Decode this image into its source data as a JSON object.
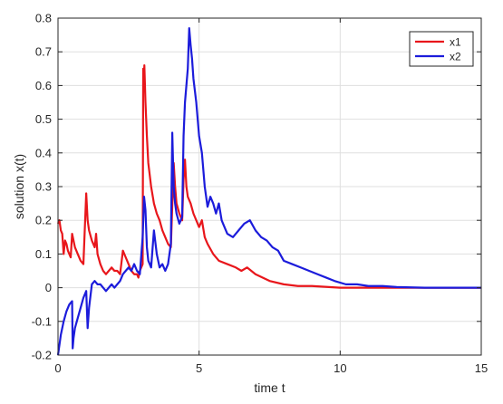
{
  "chart_data": {
    "type": "line",
    "title": "",
    "xlabel": "time t",
    "ylabel": "solution x(t)",
    "xlim": [
      0,
      15
    ],
    "ylim": [
      -0.2,
      0.8
    ],
    "x_ticks": [
      0,
      5,
      10,
      15
    ],
    "y_ticks": [
      -0.2,
      -0.1,
      0,
      0.1,
      0.2,
      0.3,
      0.4,
      0.5,
      0.6,
      0.7,
      0.8
    ],
    "x_tick_labels": [
      "0",
      "5",
      "10",
      "15"
    ],
    "y_tick_labels": [
      "-0.2",
      "-0.1",
      "0",
      "0.1",
      "0.2",
      "0.3",
      "0.4",
      "0.5",
      "0.6",
      "0.7",
      "0.8"
    ],
    "grid": true,
    "legend_position": "top-right",
    "series": [
      {
        "name": "x1",
        "color": "#e8161b",
        "points": [
          [
            0,
            0.19
          ],
          [
            0.05,
            0.2
          ],
          [
            0.1,
            0.17
          ],
          [
            0.15,
            0.16
          ],
          [
            0.2,
            0.1
          ],
          [
            0.25,
            0.14
          ],
          [
            0.3,
            0.13
          ],
          [
            0.35,
            0.11
          ],
          [
            0.4,
            0.1
          ],
          [
            0.45,
            0.09
          ],
          [
            0.5,
            0.16
          ],
          [
            0.55,
            0.14
          ],
          [
            0.6,
            0.12
          ],
          [
            0.7,
            0.1
          ],
          [
            0.8,
            0.08
          ],
          [
            0.9,
            0.07
          ],
          [
            1.0,
            0.28
          ],
          [
            1.05,
            0.2
          ],
          [
            1.1,
            0.17
          ],
          [
            1.2,
            0.14
          ],
          [
            1.3,
            0.12
          ],
          [
            1.35,
            0.16
          ],
          [
            1.4,
            0.1
          ],
          [
            1.5,
            0.07
          ],
          [
            1.6,
            0.05
          ],
          [
            1.7,
            0.04
          ],
          [
            1.8,
            0.05
          ],
          [
            1.9,
            0.06
          ],
          [
            2.0,
            0.05
          ],
          [
            2.1,
            0.05
          ],
          [
            2.2,
            0.04
          ],
          [
            2.3,
            0.11
          ],
          [
            2.4,
            0.09
          ],
          [
            2.5,
            0.07
          ],
          [
            2.6,
            0.05
          ],
          [
            2.7,
            0.04
          ],
          [
            2.8,
            0.04
          ],
          [
            2.85,
            0.03
          ],
          [
            2.9,
            0.05
          ],
          [
            2.95,
            0.06
          ],
          [
            3.0,
            0.07
          ],
          [
            3.02,
            0.65
          ],
          [
            3.05,
            0.62
          ],
          [
            3.06,
            0.66
          ],
          [
            3.1,
            0.55
          ],
          [
            3.15,
            0.45
          ],
          [
            3.2,
            0.37
          ],
          [
            3.3,
            0.3
          ],
          [
            3.4,
            0.25
          ],
          [
            3.5,
            0.22
          ],
          [
            3.6,
            0.2
          ],
          [
            3.7,
            0.17
          ],
          [
            3.8,
            0.15
          ],
          [
            3.9,
            0.13
          ],
          [
            4.0,
            0.12
          ],
          [
            4.1,
            0.37
          ],
          [
            4.15,
            0.3
          ],
          [
            4.2,
            0.25
          ],
          [
            4.3,
            0.22
          ],
          [
            4.4,
            0.2
          ],
          [
            4.45,
            0.32
          ],
          [
            4.5,
            0.38
          ],
          [
            4.55,
            0.3
          ],
          [
            4.6,
            0.27
          ],
          [
            4.7,
            0.25
          ],
          [
            4.8,
            0.22
          ],
          [
            4.9,
            0.2
          ],
          [
            5.0,
            0.18
          ],
          [
            5.1,
            0.2
          ],
          [
            5.2,
            0.15
          ],
          [
            5.3,
            0.13
          ],
          [
            5.5,
            0.1
          ],
          [
            5.7,
            0.08
          ],
          [
            6.0,
            0.07
          ],
          [
            6.3,
            0.06
          ],
          [
            6.5,
            0.05
          ],
          [
            6.7,
            0.06
          ],
          [
            7.0,
            0.04
          ],
          [
            7.5,
            0.02
          ],
          [
            8.0,
            0.01
          ],
          [
            8.5,
            0.005
          ],
          [
            9.0,
            0.005
          ],
          [
            10.0,
            0.0
          ],
          [
            11.0,
            0.0
          ],
          [
            12.0,
            0.0
          ],
          [
            13.0,
            0.0
          ],
          [
            14.0,
            0.0
          ],
          [
            15.0,
            0.0
          ]
        ]
      },
      {
        "name": "x2",
        "color": "#1c1cdb",
        "points": [
          [
            0,
            -0.2
          ],
          [
            0.05,
            -0.17
          ],
          [
            0.1,
            -0.14
          ],
          [
            0.15,
            -0.12
          ],
          [
            0.2,
            -0.1
          ],
          [
            0.3,
            -0.07
          ],
          [
            0.4,
            -0.05
          ],
          [
            0.5,
            -0.04
          ],
          [
            0.52,
            -0.18
          ],
          [
            0.55,
            -0.15
          ],
          [
            0.6,
            -0.12
          ],
          [
            0.7,
            -0.09
          ],
          [
            0.8,
            -0.06
          ],
          [
            0.9,
            -0.03
          ],
          [
            1.0,
            -0.01
          ],
          [
            1.05,
            -0.12
          ],
          [
            1.1,
            -0.06
          ],
          [
            1.2,
            0.01
          ],
          [
            1.3,
            0.02
          ],
          [
            1.4,
            0.01
          ],
          [
            1.5,
            0.01
          ],
          [
            1.6,
            0.0
          ],
          [
            1.7,
            -0.01
          ],
          [
            1.8,
            0.0
          ],
          [
            1.9,
            0.01
          ],
          [
            2.0,
            0.0
          ],
          [
            2.1,
            0.01
          ],
          [
            2.2,
            0.02
          ],
          [
            2.3,
            0.04
          ],
          [
            2.4,
            0.05
          ],
          [
            2.5,
            0.06
          ],
          [
            2.6,
            0.05
          ],
          [
            2.7,
            0.07
          ],
          [
            2.8,
            0.05
          ],
          [
            2.9,
            0.04
          ],
          [
            3.0,
            0.15
          ],
          [
            3.05,
            0.27
          ],
          [
            3.1,
            0.23
          ],
          [
            3.15,
            0.12
          ],
          [
            3.2,
            0.08
          ],
          [
            3.3,
            0.06
          ],
          [
            3.4,
            0.17
          ],
          [
            3.5,
            0.1
          ],
          [
            3.6,
            0.06
          ],
          [
            3.7,
            0.07
          ],
          [
            3.8,
            0.05
          ],
          [
            3.9,
            0.07
          ],
          [
            4.0,
            0.13
          ],
          [
            4.05,
            0.46
          ],
          [
            4.1,
            0.3
          ],
          [
            4.15,
            0.25
          ],
          [
            4.2,
            0.22
          ],
          [
            4.3,
            0.19
          ],
          [
            4.4,
            0.21
          ],
          [
            4.45,
            0.45
          ],
          [
            4.5,
            0.55
          ],
          [
            4.6,
            0.65
          ],
          [
            4.65,
            0.77
          ],
          [
            4.7,
            0.72
          ],
          [
            4.75,
            0.68
          ],
          [
            4.8,
            0.62
          ],
          [
            4.9,
            0.55
          ],
          [
            5.0,
            0.45
          ],
          [
            5.1,
            0.4
          ],
          [
            5.2,
            0.3
          ],
          [
            5.3,
            0.24
          ],
          [
            5.4,
            0.27
          ],
          [
            5.5,
            0.25
          ],
          [
            5.6,
            0.22
          ],
          [
            5.7,
            0.25
          ],
          [
            5.8,
            0.2
          ],
          [
            5.9,
            0.18
          ],
          [
            6.0,
            0.16
          ],
          [
            6.2,
            0.15
          ],
          [
            6.4,
            0.17
          ],
          [
            6.6,
            0.19
          ],
          [
            6.8,
            0.2
          ],
          [
            7.0,
            0.17
          ],
          [
            7.2,
            0.15
          ],
          [
            7.4,
            0.14
          ],
          [
            7.6,
            0.12
          ],
          [
            7.8,
            0.11
          ],
          [
            8.0,
            0.08
          ],
          [
            8.3,
            0.07
          ],
          [
            8.6,
            0.06
          ],
          [
            8.9,
            0.05
          ],
          [
            9.2,
            0.04
          ],
          [
            9.5,
            0.03
          ],
          [
            9.8,
            0.02
          ],
          [
            10.2,
            0.01
          ],
          [
            10.6,
            0.01
          ],
          [
            11.0,
            0.005
          ],
          [
            11.5,
            0.005
          ],
          [
            12.0,
            0.002
          ],
          [
            13.0,
            0.0
          ],
          [
            14.0,
            0.0
          ],
          [
            15.0,
            0.0
          ]
        ]
      }
    ]
  }
}
